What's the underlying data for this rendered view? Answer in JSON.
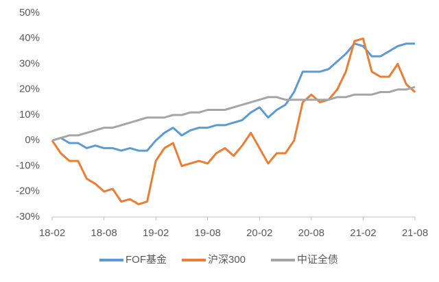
{
  "chart_data": {
    "type": "line",
    "categories": [
      "18-02",
      null,
      null,
      null,
      null,
      null,
      "18-08",
      null,
      null,
      null,
      null,
      null,
      "19-02",
      null,
      null,
      null,
      null,
      null,
      "19-08",
      null,
      null,
      null,
      null,
      null,
      "20-02",
      null,
      null,
      null,
      null,
      null,
      "20-08",
      null,
      null,
      null,
      null,
      null,
      "21-02",
      null,
      null,
      null,
      null,
      null,
      "21-08"
    ],
    "series": [
      {
        "name": "FOF基金",
        "color": "#5b9bd5",
        "values": [
          0,
          1,
          -1,
          -1,
          -3,
          -2,
          -3,
          -3,
          -4,
          -3,
          -4,
          -4,
          0,
          3,
          5,
          2,
          4,
          5,
          5,
          6,
          6,
          7,
          8,
          11,
          13,
          9,
          12,
          14,
          19,
          27,
          27,
          27,
          28,
          31,
          34,
          38,
          37,
          33,
          33,
          35,
          37,
          38,
          38
        ]
      },
      {
        "name": "沪深300",
        "color": "#ed7d31",
        "values": [
          0,
          -5,
          -8,
          -8,
          -15,
          -17,
          -20,
          -19,
          -24,
          -23,
          -25,
          -24,
          -8,
          -3,
          -1,
          -10,
          -9,
          -8,
          -9,
          -5,
          -3,
          -6,
          -2,
          3,
          -3,
          -9,
          -5,
          -5,
          0,
          15,
          18,
          15,
          16,
          20,
          27,
          39,
          40,
          27,
          25,
          25,
          30,
          22,
          19
        ]
      },
      {
        "name": "中证全债",
        "color": "#a5a5a5",
        "values": [
          0,
          1,
          2,
          2,
          3,
          4,
          5,
          5,
          6,
          7,
          8,
          9,
          9,
          9,
          10,
          10,
          11,
          11,
          12,
          12,
          12,
          13,
          14,
          15,
          16,
          17,
          17,
          16,
          16,
          16,
          16,
          16,
          16,
          17,
          17,
          18,
          18,
          18,
          19,
          19,
          20,
          20,
          21
        ]
      }
    ],
    "ylim": [
      -30,
      50
    ],
    "yticks": [
      {
        "value": -30,
        "label": "-30%"
      },
      {
        "value": -20,
        "label": "-20%"
      },
      {
        "value": -10,
        "label": "-10%"
      },
      {
        "value": 0,
        "label": "0%"
      },
      {
        "value": 10,
        "label": "10%"
      },
      {
        "value": 20,
        "label": "20%"
      },
      {
        "value": 30,
        "label": "30%"
      },
      {
        "value": 40,
        "label": "40%"
      },
      {
        "value": 50,
        "label": "50%"
      }
    ],
    "legend": "bottom"
  }
}
